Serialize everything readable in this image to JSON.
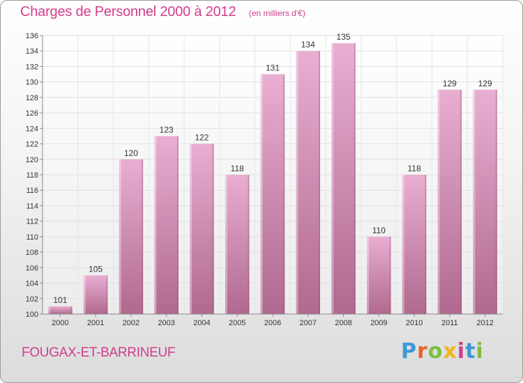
{
  "title": "Charges de Personnel 2000 à 2012",
  "subtitle": "(en milliers d'€)",
  "commune": "FOUGAX-ET-BARRINEUF",
  "logo": {
    "letters": [
      "P",
      "r",
      "o",
      "x",
      "i",
      "t",
      "i"
    ],
    "colors": [
      "#3a9ad9",
      "#e8622a",
      "#7bbf3f",
      "#f2b518",
      "#d23c8c",
      "#3a9ad9",
      "#7bbf3f"
    ]
  },
  "colors": {
    "bar_light": "#e9aed2",
    "bar_dark": "#b0698f",
    "accent": "#d23c8c"
  },
  "chart_data": {
    "type": "bar",
    "categories": [
      "2000",
      "2001",
      "2002",
      "2003",
      "2004",
      "2005",
      "2006",
      "2007",
      "2008",
      "2009",
      "2010",
      "2011",
      "2012"
    ],
    "values": [
      101,
      105,
      120,
      123,
      122,
      118,
      131,
      134,
      135,
      110,
      118,
      129,
      129
    ],
    "ylim": [
      100,
      136
    ],
    "yticks": [
      100,
      102,
      104,
      106,
      108,
      110,
      112,
      114,
      116,
      118,
      120,
      122,
      124,
      126,
      128,
      130,
      132,
      134,
      136
    ],
    "grid": true
  }
}
